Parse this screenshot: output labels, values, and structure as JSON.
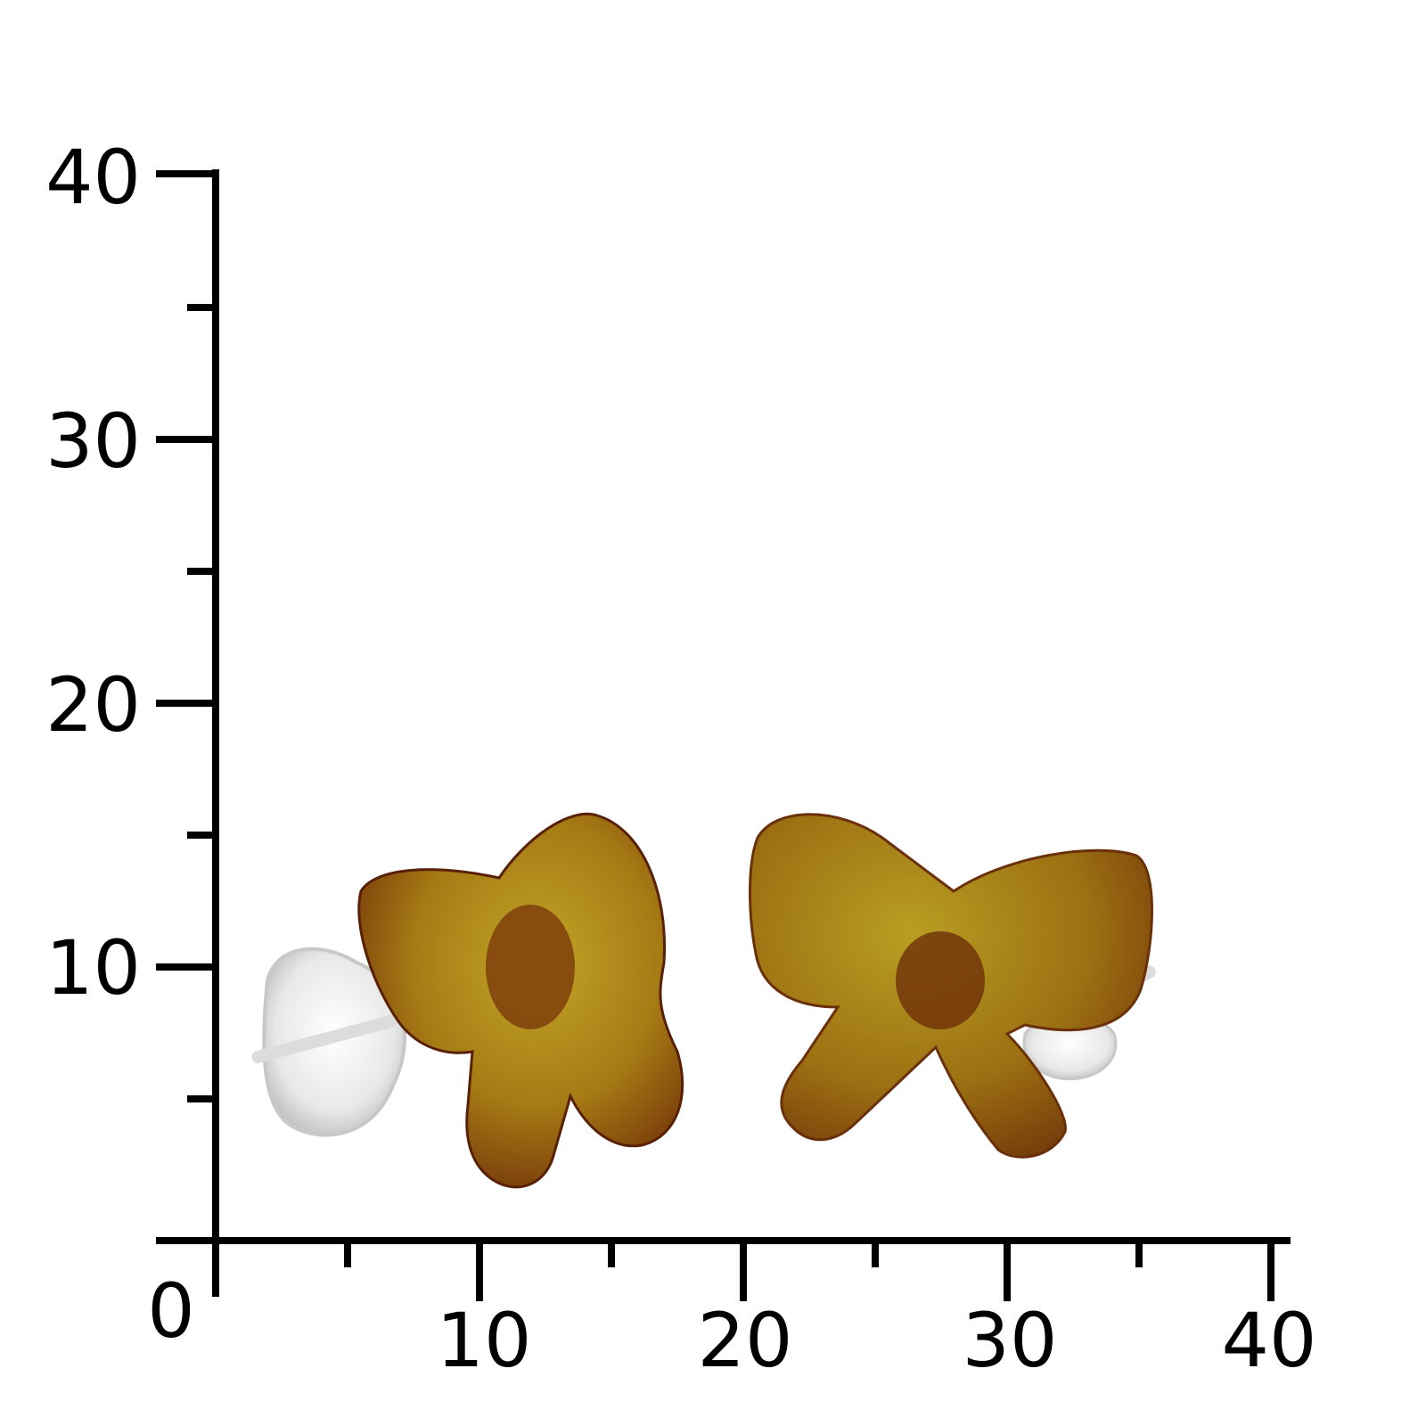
{
  "scale": {
    "origin_label": "0",
    "y_labels": [
      "10",
      "20",
      "30",
      "40"
    ],
    "x_labels": [
      "10",
      "20",
      "30",
      "40"
    ],
    "axis_color": "#000000"
  },
  "product": {
    "items": [
      "amber-bow-stud-earring-left",
      "amber-bow-stud-earring-right"
    ],
    "colors": {
      "amber_light": "#b8a020",
      "amber_mid": "#9a6a10",
      "amber_dark": "#6a2a08",
      "silver": "#e6e6e6"
    }
  }
}
